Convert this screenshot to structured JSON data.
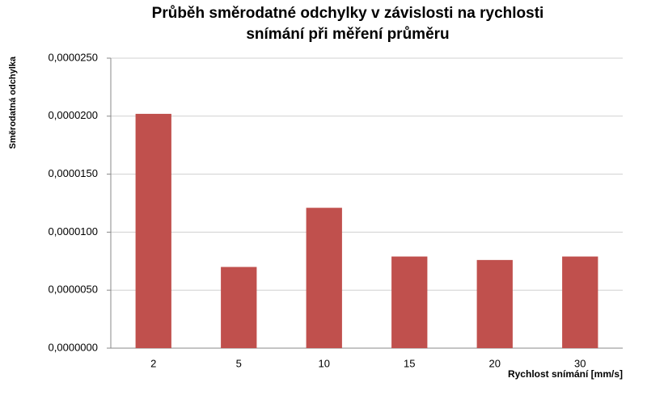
{
  "chart_data": {
    "type": "bar",
    "title": [
      "Průběh směrodatné odchylky v závislosti na rychlosti",
      "snímání při měření průměru"
    ],
    "y_label": "Směrodatná odchylka",
    "x_label": "Rychlost snímání [mm/s]",
    "categories": [
      "2",
      "5",
      "10",
      "15",
      "20",
      "30"
    ],
    "values": [
      2.02e-05,
      7e-06,
      1.21e-05,
      7.9e-06,
      7.6e-06,
      7.9e-06
    ],
    "color": "#c0504d",
    "ylim": [
      0,
      2.5e-05
    ],
    "yticks": [
      {
        "value": 0,
        "label": "0,0000000"
      },
      {
        "value": 5e-06,
        "label": "0,0000050"
      },
      {
        "value": 1e-05,
        "label": "0,0000100"
      },
      {
        "value": 1.5e-05,
        "label": "0,0000150"
      },
      {
        "value": 2e-05,
        "label": "0,0000200"
      },
      {
        "value": 2.5e-05,
        "label": "0,0000250"
      }
    ],
    "grid": true
  }
}
